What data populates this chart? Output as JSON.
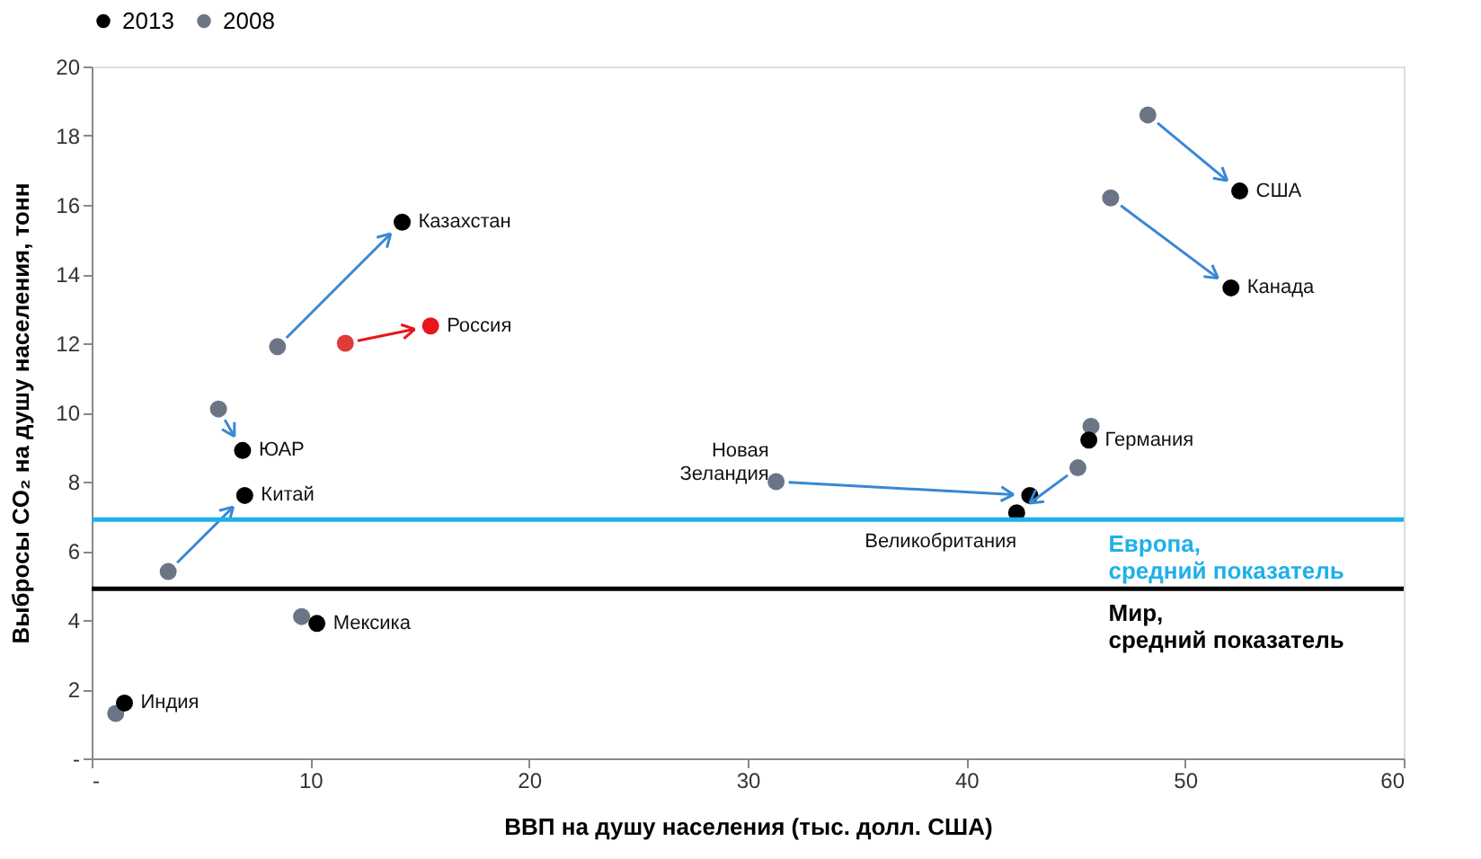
{
  "chart_data": {
    "type": "scatter",
    "xlabel": "ВВП на душу населения (тыс. долл. США)",
    "ylabel": "Выбросы CO₂ на душу населения, тонн",
    "series": [
      {
        "name": "2013",
        "color": "#000000",
        "x": [
          14.2,
          15.5,
          6.9,
          7.0,
          10.3,
          1.5,
          52.5,
          52.1,
          42.9,
          42.3,
          45.6
        ],
        "values": [
          15.5,
          12.5,
          8.9,
          7.6,
          3.9,
          1.6,
          16.4,
          13.6,
          7.6,
          7.1,
          9.2
        ],
        "colors": [
          "#000000",
          "#e8151b",
          "#000000",
          "#000000",
          "#000000",
          "#000000",
          "#000000",
          "#000000",
          "#000000",
          "#000000",
          "#000000"
        ]
      },
      {
        "name": "2008",
        "color": "#6b7586",
        "x": [
          8.5,
          11.6,
          5.8,
          3.5,
          9.6,
          1.1,
          48.3,
          46.6,
          31.3,
          45.1,
          45.7
        ],
        "values": [
          11.9,
          12.0,
          10.1,
          5.4,
          4.1,
          1.3,
          18.6,
          16.2,
          8.0,
          8.4,
          9.6
        ],
        "colors": [
          "#6b7586",
          "#e03a3a",
          "#6b7586",
          "#6b7586",
          "#6b7586",
          "#6b7586",
          "#6b7586",
          "#6b7586",
          "#6b7586",
          "#6b7586",
          "#6b7586"
        ]
      }
    ],
    "xlim": [
      0,
      60
    ],
    "xticks": [
      {
        "value": 0,
        "label": "-"
      },
      10,
      20,
      30,
      40,
      50,
      60
    ],
    "ylim": [
      0,
      20
    ],
    "yticks": [
      {
        "value": 0,
        "label": "-"
      },
      2,
      4,
      6,
      8,
      10,
      12,
      14,
      16,
      18,
      20
    ],
    "ref_lines": [
      {
        "axis": "y",
        "value": 6.9,
        "label": "Европа,\nсредний показатель",
        "color": "#1fb0e8"
      },
      {
        "axis": "y",
        "value": 4.9,
        "label": "Мир,\nсредний показатель",
        "color": "#000000"
      }
    ],
    "annotations": [
      {
        "text": "Казахстан",
        "x": 14.2,
        "y": 15.5
      },
      {
        "text": "Россия",
        "x": 15.5,
        "y": 12.5
      },
      {
        "text": "ЮАР",
        "x": 6.9,
        "y": 8.9
      },
      {
        "text": "Китай",
        "x": 7.0,
        "y": 7.6
      },
      {
        "text": "Мексика",
        "x": 10.3,
        "y": 3.9
      },
      {
        "text": "Индия",
        "x": 1.5,
        "y": 1.6
      },
      {
        "text": "США",
        "x": 52.5,
        "y": 16.4
      },
      {
        "text": "Канада",
        "x": 52.1,
        "y": 13.6
      },
      {
        "text": "Новая\nЗеландия",
        "x": 31.3,
        "y": 8.0
      },
      {
        "text": "Великобритания",
        "x": 42.3,
        "y": 7.1
      },
      {
        "text": "Германия",
        "x": 45.6,
        "y": 9.2
      }
    ],
    "grid": false,
    "legend": "top",
    "marker": "circle"
  }
}
